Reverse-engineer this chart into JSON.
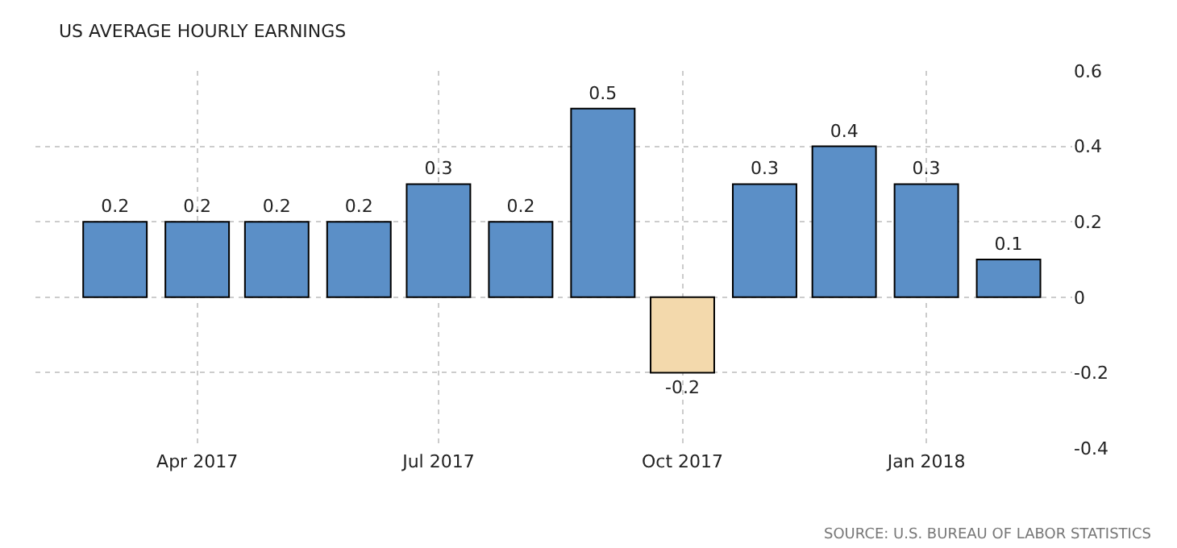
{
  "chart_data": {
    "type": "bar",
    "title": "US AVERAGE HOURLY EARNINGS",
    "x": [
      "2017-03",
      "2017-04",
      "2017-05",
      "2017-06",
      "2017-07",
      "2017-08",
      "2017-09",
      "2017-10",
      "2017-11",
      "2017-12",
      "2018-01",
      "2018-02"
    ],
    "values": [
      0.2,
      0.2,
      0.2,
      0.2,
      0.3,
      0.2,
      0.5,
      -0.2,
      0.3,
      0.4,
      0.3,
      0.1
    ],
    "colors": [
      "#5b8fc7",
      "#5b8fc7",
      "#5b8fc7",
      "#5b8fc7",
      "#5b8fc7",
      "#5b8fc7",
      "#5b8fc7",
      "#f3d9ac",
      "#5b8fc7",
      "#5b8fc7",
      "#5b8fc7",
      "#5b8fc7"
    ],
    "data_labels": true,
    "xlim": [
      "2017-01-30",
      "2018-02-25"
    ],
    "xticks": [
      {
        "value": "2017-04",
        "label": "Apr 2017"
      },
      {
        "value": "2017-07",
        "label": "Jul 2017"
      },
      {
        "value": "2017-10",
        "label": "Oct 2017"
      },
      {
        "value": "2018-01",
        "label": "Jan 2018"
      }
    ],
    "ylim": [
      -0.4,
      0.6
    ],
    "yticks": [
      {
        "value": 0.6,
        "label": "0.6"
      },
      {
        "value": 0.4,
        "label": "0.4"
      },
      {
        "value": 0.2,
        "label": "0.2"
      },
      {
        "value": 0,
        "label": "0"
      },
      {
        "value": -0.2,
        "label": "-0.2"
      },
      {
        "value": -0.4,
        "label": "-0.4"
      }
    ],
    "grid": true,
    "annotations": [
      "SOURCE: U.S. BUREAU OF LABOR STATISTICS"
    ]
  }
}
